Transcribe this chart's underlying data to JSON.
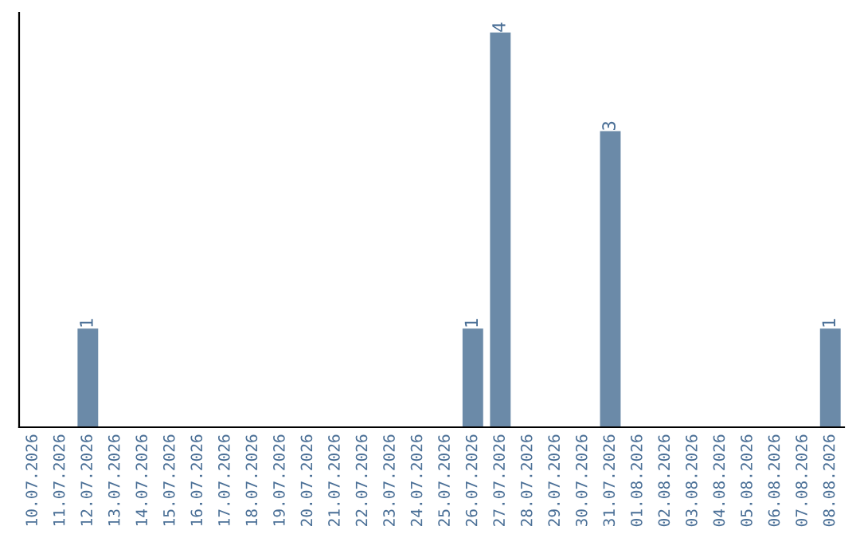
{
  "chart_data": {
    "type": "bar",
    "categories": [
      "10.07.2026",
      "11.07.2026",
      "12.07.2026",
      "13.07.2026",
      "14.07.2026",
      "15.07.2026",
      "16.07.2026",
      "17.07.2026",
      "18.07.2026",
      "19.07.2026",
      "20.07.2026",
      "21.07.2026",
      "22.07.2026",
      "23.07.2026",
      "24.07.2026",
      "25.07.2026",
      "26.07.2026",
      "27.07.2026",
      "28.07.2026",
      "29.07.2026",
      "30.07.2026",
      "31.07.2026",
      "01.08.2026",
      "02.08.2026",
      "03.08.2026",
      "04.08.2026",
      "05.08.2026",
      "06.08.2026",
      "07.08.2026",
      "08.08.2026"
    ],
    "values": [
      0,
      0,
      1,
      0,
      0,
      0,
      0,
      0,
      0,
      0,
      0,
      0,
      0,
      0,
      0,
      0,
      1,
      4,
      0,
      0,
      0,
      3,
      0,
      0,
      0,
      0,
      0,
      0,
      0,
      1
    ],
    "value_labels": [
      null,
      null,
      "1",
      null,
      null,
      null,
      null,
      null,
      null,
      null,
      null,
      null,
      null,
      null,
      null,
      null,
      "1",
      "4",
      null,
      null,
      null,
      "3",
      null,
      null,
      null,
      null,
      null,
      null,
      null,
      "1"
    ],
    "color": "#6b8aa8",
    "grid": false,
    "legend": false
  }
}
